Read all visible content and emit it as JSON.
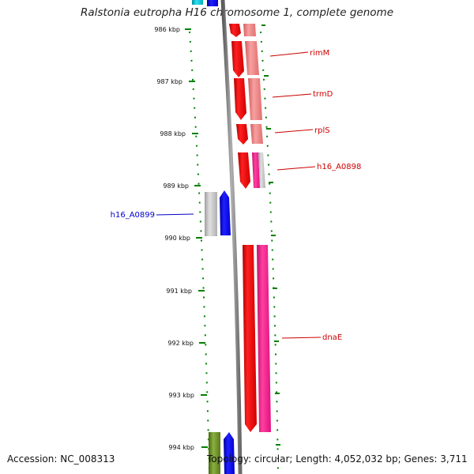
{
  "title": "Ralstonia eutropha H16 chromosome 1, complete genome",
  "footer": {
    "accession": "Accession: NC_008313",
    "summary": "Topology: circular; Length: 4,052,032 bp; Genes: 3,711"
  },
  "ticks": [
    "986 kbp",
    "987 kbp",
    "988 kbp",
    "989 kbp",
    "990 kbp",
    "991 kbp",
    "992 kbp",
    "993 kbp",
    "994 kbp"
  ],
  "gene_labels": {
    "rimM": "rimM",
    "trmD": "trmD",
    "rplS": "rplS",
    "h16_A0898": "h16_A0898",
    "h16_A0899": "h16_A0899",
    "dnaE": "dnaE"
  },
  "colors": {
    "forward_gene": "#ff0000",
    "forward_gene_light": "#f08080",
    "reverse_gene": "#0000ff",
    "magenta_gene": "#ff1493",
    "grey_gene": "#c8c8c8",
    "olive_gene": "#6b8e23",
    "cyan_gene": "#00bcd4",
    "tick_green": "#008000",
    "label_red": "#cc0000",
    "label_blue": "#0000cc",
    "backbone": "#808080"
  }
}
